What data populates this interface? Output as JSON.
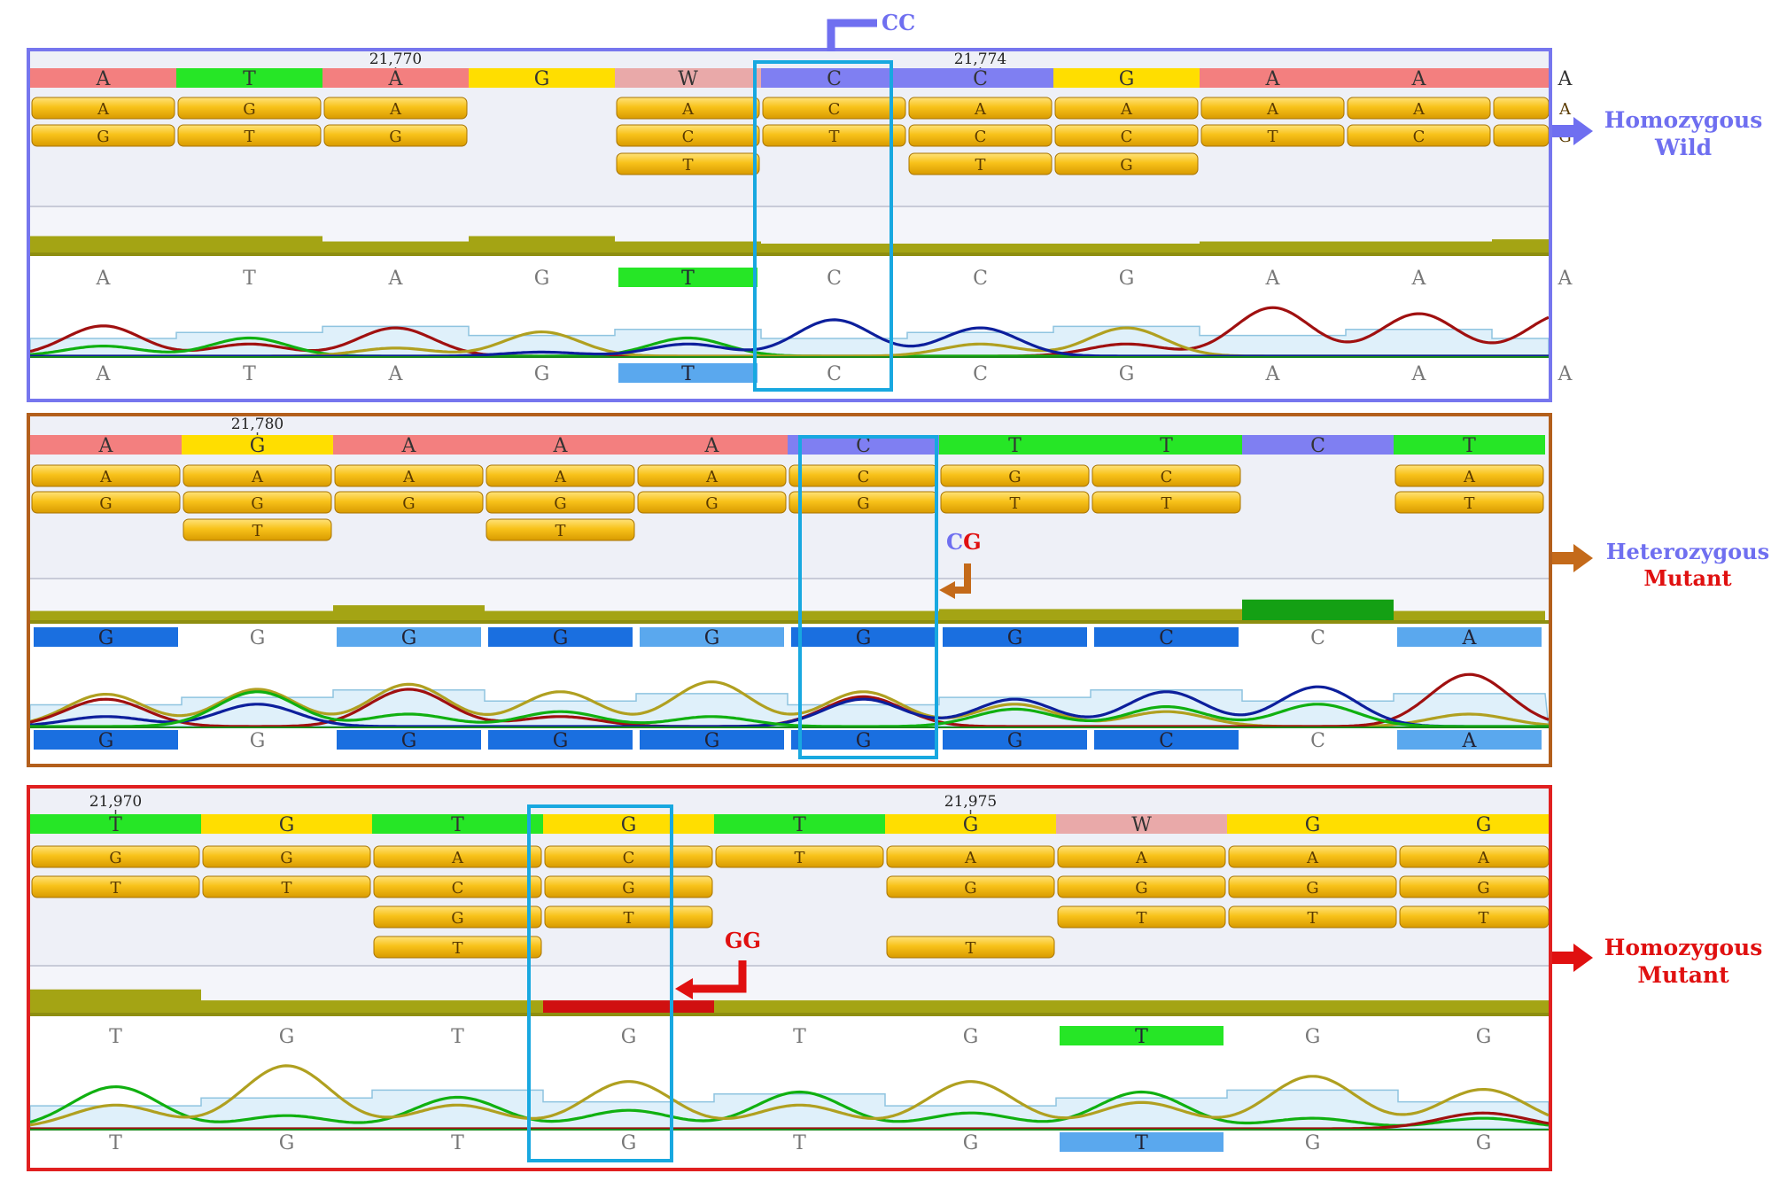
{
  "callouts": {
    "cc": {
      "text": "CC",
      "color": "#6f6ff0"
    },
    "cg": {
      "c": "C",
      "g": "G"
    },
    "gg": {
      "text": "GG",
      "color": "#e01010"
    }
  },
  "side_labels": {
    "wild": {
      "line1": "Homozygous",
      "line2": "Wild",
      "color": "#6f6ff0"
    },
    "het": {
      "line1": "Heterozygous",
      "line2": "Mutant",
      "color1": "#6f6ff0",
      "color2": "#e01010"
    },
    "mut": {
      "line1": "Homozygous",
      "line2": "Mutant",
      "color": "#e01010"
    }
  },
  "base_colors": {
    "A": "#f37f7f",
    "T": "#26e626",
    "G": "#ffde00",
    "C": "#7f7ff2",
    "W": "#e9a9a9"
  },
  "trace_colors": {
    "A": "#a01010",
    "T": "#10b010",
    "G": "#b0a020",
    "C": "#0d1f9c"
  },
  "panels": [
    {
      "id": "wild",
      "frame_color": "#7676ee",
      "columns": 10.5,
      "positions": [
        {
          "col": 2.5,
          "text": "21,770"
        },
        {
          "col": 6.5,
          "text": "21,774"
        }
      ],
      "consensus": [
        "A",
        "T",
        "A",
        "G",
        "W",
        "C",
        "C",
        "G",
        "A",
        "A",
        "A"
      ],
      "read_rows": [
        [
          "A",
          "G",
          "A",
          null,
          "A",
          "C",
          "A",
          "A",
          "A",
          "A",
          "A"
        ],
        [
          "G",
          "T",
          "G",
          null,
          "C",
          "T",
          "C",
          "C",
          "T",
          "C",
          "G"
        ],
        [
          null,
          null,
          null,
          null,
          "T",
          null,
          "T",
          "G",
          null,
          null,
          null
        ]
      ],
      "coverage": [
        0.6,
        0.6,
        0.35,
        0.6,
        0.35,
        0.25,
        0.25,
        0.25,
        0.35,
        0.35,
        0.45
      ],
      "calls_top": [
        "A",
        "T",
        "A",
        "G",
        "T",
        "C",
        "C",
        "G",
        "A",
        "A",
        "A"
      ],
      "calls_top_highlight": {
        "4": "#26e626"
      },
      "calls_bottom": [
        "A",
        "T",
        "A",
        "G",
        "T",
        "C",
        "C",
        "G",
        "A",
        "A",
        "A"
      ],
      "calls_bottom_highlight": {
        "4": "#5aa8ee"
      },
      "peaks": [
        {
          "col": 0,
          "base": "A",
          "h": 0.75
        },
        {
          "col": 0,
          "base": "T",
          "h": 0.25
        },
        {
          "col": 1,
          "base": "T",
          "h": 0.45
        },
        {
          "col": 1,
          "base": "A",
          "h": 0.3
        },
        {
          "col": 2,
          "base": "A",
          "h": 0.7
        },
        {
          "col": 2,
          "base": "G",
          "h": 0.2
        },
        {
          "col": 3,
          "base": "G",
          "h": 0.6
        },
        {
          "col": 3,
          "base": "C",
          "h": 0.1
        },
        {
          "col": 4,
          "base": "T",
          "h": 0.45
        },
        {
          "col": 4,
          "base": "C",
          "h": 0.3
        },
        {
          "col": 5,
          "base": "C",
          "h": 0.9
        },
        {
          "col": 6,
          "base": "C",
          "h": 0.7
        },
        {
          "col": 6,
          "base": "G",
          "h": 0.3
        },
        {
          "col": 7,
          "base": "G",
          "h": 0.7
        },
        {
          "col": 7,
          "base": "A",
          "h": 0.3
        },
        {
          "col": 8,
          "base": "A",
          "h": 1.2
        },
        {
          "col": 9,
          "base": "A",
          "h": 1.05
        },
        {
          "col": 10,
          "base": "A",
          "h": 1.05
        }
      ],
      "highlight_col": 5
    },
    {
      "id": "het",
      "frame_color": "#b35f1c",
      "columns": 10,
      "positions": [
        {
          "col": 1.5,
          "text": "21,780"
        }
      ],
      "consensus": [
        "A",
        "G",
        "A",
        "A",
        "A",
        "C",
        "T",
        "T",
        "C",
        "T"
      ],
      "read_rows": [
        [
          "A",
          "A",
          "A",
          "A",
          "A",
          "C",
          "G",
          "C",
          null,
          "A"
        ],
        [
          "G",
          "G",
          "G",
          "G",
          "G",
          "G",
          "T",
          "T",
          null,
          "T"
        ],
        [
          null,
          "T",
          null,
          "T",
          null,
          null,
          null,
          null,
          null,
          null
        ]
      ],
      "coverage": [
        0.3,
        0.3,
        0.6,
        0.3,
        0.3,
        0.3,
        0.4,
        0.4,
        0.9,
        0.3
      ],
      "coverage_highlight": {
        "8": "#14a014"
      },
      "calls_top": [
        "G",
        "G",
        "G",
        "G",
        "G",
        "G",
        "G",
        "C",
        "C",
        "A"
      ],
      "calls_top_highlight": {
        "0": "#1a6fe0",
        "2": "#5aa8ee",
        "3": "#1a6fe0",
        "4": "#5aa8ee",
        "5": "#1a6fe0",
        "6": "#1a6fe0",
        "7": "#1a6fe0",
        "9": "#5aa8ee"
      },
      "calls_bottom": [
        "G",
        "G",
        "G",
        "G",
        "G",
        "G",
        "G",
        "C",
        "C",
        "A"
      ],
      "calls_bottom_highlight": {
        "0": "#1a6fe0",
        "2": "#1a6fe0",
        "3": "#1a6fe0",
        "4": "#1a6fe0",
        "5": "#1a6fe0",
        "6": "#1a6fe0",
        "7": "#1a6fe0",
        "9": "#5aa8ee"
      },
      "peaks": [
        {
          "col": 0,
          "base": "G",
          "h": 0.65
        },
        {
          "col": 0,
          "base": "A",
          "h": 0.55
        },
        {
          "col": 0,
          "base": "C",
          "h": 0.2
        },
        {
          "col": 1,
          "base": "G",
          "h": 0.75
        },
        {
          "col": 1,
          "base": "T",
          "h": 0.7
        },
        {
          "col": 1,
          "base": "C",
          "h": 0.45
        },
        {
          "col": 2,
          "base": "G",
          "h": 0.85
        },
        {
          "col": 2,
          "base": "A",
          "h": 0.75
        },
        {
          "col": 2,
          "base": "T",
          "h": 0.25
        },
        {
          "col": 3,
          "base": "G",
          "h": 0.7
        },
        {
          "col": 3,
          "base": "T",
          "h": 0.3
        },
        {
          "col": 3,
          "base": "A",
          "h": 0.2
        },
        {
          "col": 4,
          "base": "G",
          "h": 0.9
        },
        {
          "col": 4,
          "base": "T",
          "h": 0.2
        },
        {
          "col": 5,
          "base": "G",
          "h": 0.7
        },
        {
          "col": 5,
          "base": "C",
          "h": 0.55
        },
        {
          "col": 5,
          "base": "A",
          "h": 0.6
        },
        {
          "col": 6,
          "base": "C",
          "h": 0.55
        },
        {
          "col": 6,
          "base": "G",
          "h": 0.45
        },
        {
          "col": 6,
          "base": "T",
          "h": 0.35
        },
        {
          "col": 7,
          "base": "C",
          "h": 0.7
        },
        {
          "col": 7,
          "base": "T",
          "h": 0.4
        },
        {
          "col": 7,
          "base": "G",
          "h": 0.3
        },
        {
          "col": 8,
          "base": "C",
          "h": 0.8
        },
        {
          "col": 8,
          "base": "T",
          "h": 0.45
        },
        {
          "col": 9,
          "base": "A",
          "h": 1.05
        },
        {
          "col": 9,
          "base": "G",
          "h": 0.25
        }
      ],
      "highlight_col": 5
    },
    {
      "id": "mut",
      "frame_color": "#e02020",
      "columns": 9,
      "positions": [
        {
          "col": 0.5,
          "text": "21,970"
        },
        {
          "col": 5.5,
          "text": "21,975"
        }
      ],
      "consensus": [
        "T",
        "G",
        "T",
        "G",
        "T",
        "G",
        "W",
        "G",
        "G"
      ],
      "read_rows": [
        [
          "G",
          "G",
          "A",
          "C",
          "T",
          "A",
          "A",
          "A",
          "A"
        ],
        [
          "T",
          "T",
          "C",
          "G",
          null,
          "G",
          "G",
          "G",
          "G"
        ],
        [
          null,
          null,
          "G",
          "T",
          null,
          null,
          "T",
          "T",
          "T"
        ],
        [
          null,
          null,
          "T",
          null,
          null,
          "T",
          null,
          null,
          null
        ]
      ],
      "coverage": [
        0.9,
        0.4,
        0.4,
        0.4,
        0.4,
        0.4,
        0.4,
        0.4,
        0.4
      ],
      "coverage_highlight": {
        "3": "#d01010"
      },
      "calls_top": [
        "T",
        "G",
        "T",
        "G",
        "T",
        "G",
        "T",
        "G",
        "G"
      ],
      "calls_top_highlight": {
        "6": "#26e626"
      },
      "calls_bottom": [
        "T",
        "G",
        "T",
        "G",
        "T",
        "G",
        "T",
        "G",
        "G"
      ],
      "calls_bottom_highlight": {
        "6": "#5aa8ee"
      },
      "peaks": [
        {
          "col": 0,
          "base": "T",
          "h": 0.8
        },
        {
          "col": 0,
          "base": "G",
          "h": 0.45
        },
        {
          "col": 1,
          "base": "G",
          "h": 1.2
        },
        {
          "col": 1,
          "base": "T",
          "h": 0.25
        },
        {
          "col": 2,
          "base": "T",
          "h": 0.6
        },
        {
          "col": 2,
          "base": "G",
          "h": 0.45
        },
        {
          "col": 3,
          "base": "G",
          "h": 0.9
        },
        {
          "col": 3,
          "base": "T",
          "h": 0.35
        },
        {
          "col": 4,
          "base": "T",
          "h": 0.7
        },
        {
          "col": 4,
          "base": "G",
          "h": 0.45
        },
        {
          "col": 5,
          "base": "G",
          "h": 0.9
        },
        {
          "col": 5,
          "base": "T",
          "h": 0.3
        },
        {
          "col": 6,
          "base": "T",
          "h": 0.7
        },
        {
          "col": 6,
          "base": "G",
          "h": 0.5
        },
        {
          "col": 7,
          "base": "G",
          "h": 1.0
        },
        {
          "col": 7,
          "base": "T",
          "h": 0.2
        },
        {
          "col": 8,
          "base": "G",
          "h": 0.75
        },
        {
          "col": 8,
          "base": "A",
          "h": 0.3
        },
        {
          "col": 8,
          "base": "T",
          "h": 0.2
        }
      ],
      "highlight_col": 3
    }
  ]
}
